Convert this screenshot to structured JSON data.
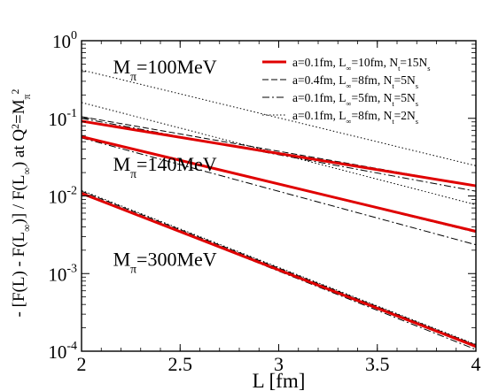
{
  "chart_data": {
    "type": "line",
    "x_axis": {
      "label": "L [fm]",
      "min": 2,
      "max": 4,
      "ticks": [
        2,
        2.5,
        3,
        3.5,
        4
      ],
      "tick_labels": [
        "2",
        "2.5",
        "3",
        "3.5",
        "4"
      ]
    },
    "y_axis": {
      "label_parts": [
        "- [F(L) - F(L",
        "∞",
        ")]  /  F(L",
        "∞",
        ")  at  Q",
        "2",
        "=M",
        "π",
        "2"
      ],
      "scale": "log",
      "min": 0.0001,
      "max": 1,
      "ticks": [
        1,
        0.1,
        0.01,
        0.001,
        0.0001
      ],
      "tick_bases": [
        "10",
        "10",
        "10",
        "10",
        "10"
      ],
      "tick_exponents": [
        "0",
        "-1",
        "-2",
        "-3",
        "-4"
      ]
    },
    "annotations": [
      {
        "parts": [
          "M",
          "π",
          "=100MeV"
        ],
        "x": 2.16,
        "y": 0.38
      },
      {
        "parts": [
          "M",
          "π",
          "=140MeV"
        ],
        "x": 2.16,
        "y": 0.021
      },
      {
        "parts": [
          "M",
          "π",
          "=300MeV"
        ],
        "x": 2.16,
        "y": 0.00125
      }
    ],
    "legend": {
      "position": "top-right",
      "entries": [
        {
          "parts": [
            "a=0.1fm, L",
            "∞",
            "=10fm, N",
            "t",
            "=15N",
            "s"
          ],
          "color": "#e00000",
          "style": "solid"
        },
        {
          "parts": [
            "a=0.4fm, L",
            "∞",
            "=8fm, N",
            "t",
            "=5N",
            "s"
          ],
          "color": "#000000",
          "style": "dashed"
        },
        {
          "parts": [
            "a=0.1fm, L",
            "∞",
            "=5fm, N",
            "t",
            "=5N",
            "s"
          ],
          "color": "#000000",
          "style": "dashdot"
        },
        {
          "parts": [
            "a=0.1fm, L",
            "∞",
            "=8fm, N",
            "t",
            "=2N",
            "s"
          ],
          "color": "#000000",
          "style": "dotted"
        }
      ]
    },
    "series": [
      {
        "group": "Mpi=100MeV",
        "legend_index": 0,
        "x": [
          2,
          4
        ],
        "y": [
          0.092,
          0.0135
        ]
      },
      {
        "group": "Mpi=100MeV",
        "legend_index": 1,
        "x": [
          2,
          4
        ],
        "y": [
          0.105,
          0.0135
        ]
      },
      {
        "group": "Mpi=100MeV",
        "legend_index": 2,
        "x": [
          2,
          4
        ],
        "y": [
          0.1,
          0.0115
        ]
      },
      {
        "group": "Mpi=100MeV",
        "legend_index": 3,
        "x": [
          2,
          4
        ],
        "y": [
          0.42,
          0.0245
        ]
      },
      {
        "group": "Mpi=140MeV",
        "legend_index": 0,
        "x": [
          2,
          4
        ],
        "y": [
          0.058,
          0.0035
        ]
      },
      {
        "group": "Mpi=140MeV",
        "legend_index": 1,
        "x": [
          2,
          4
        ],
        "y": [
          0.058,
          0.0034
        ]
      },
      {
        "group": "Mpi=140MeV",
        "legend_index": 2,
        "x": [
          2,
          4
        ],
        "y": [
          0.056,
          0.00235
        ]
      },
      {
        "group": "Mpi=140MeV",
        "legend_index": 3,
        "x": [
          2,
          4
        ],
        "y": [
          0.16,
          0.0077
        ]
      },
      {
        "group": "Mpi=300MeV",
        "legend_index": 0,
        "x": [
          2,
          4
        ],
        "y": [
          0.0108,
          0.000115
        ]
      },
      {
        "group": "Mpi=300MeV",
        "legend_index": 1,
        "x": [
          2,
          4
        ],
        "y": [
          0.0115,
          0.00012
        ]
      },
      {
        "group": "Mpi=300MeV",
        "legend_index": 2,
        "x": [
          2,
          4
        ],
        "y": [
          0.011,
          0.000105
        ]
      },
      {
        "group": "Mpi=300MeV",
        "legend_index": 3,
        "x": [
          2,
          4
        ],
        "y": [
          0.0118,
          0.000122
        ]
      }
    ]
  }
}
